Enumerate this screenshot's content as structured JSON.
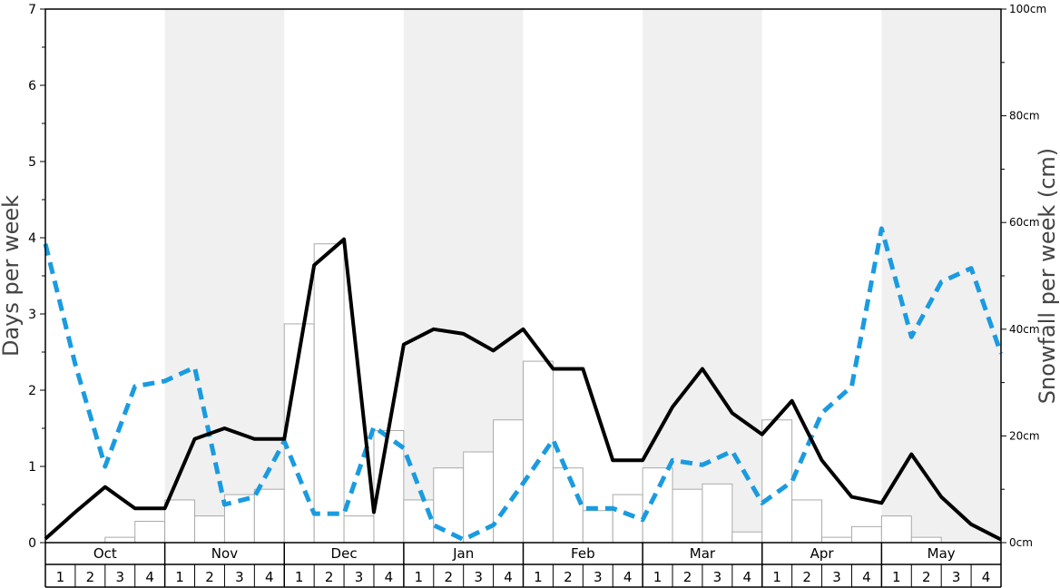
{
  "chart_data": {
    "type": "bar+line",
    "months": [
      "Oct",
      "Nov",
      "Dec",
      "Jan",
      "Feb",
      "Mar",
      "Apr",
      "May"
    ],
    "weeks_per_month": [
      "1",
      "2",
      "3",
      "4"
    ],
    "y_left": {
      "label": "Days per week",
      "range": [
        0,
        7
      ],
      "ticks": [
        "0",
        "1",
        "2",
        "3",
        "4",
        "5",
        "6",
        "7"
      ]
    },
    "y_right": {
      "label": "Snowfall per week (cm)",
      "range": [
        0,
        100
      ],
      "ticks": [
        "0cm",
        "20cm",
        "40cm",
        "60cm",
        "80cm",
        "100cm"
      ]
    },
    "snowfall_bars_cm": [
      0,
      0,
      1,
      4,
      8,
      5,
      9,
      10,
      41,
      56,
      5,
      21,
      8,
      14,
      17,
      23,
      34,
      14,
      6,
      9,
      14,
      10,
      11,
      2,
      23,
      8,
      1,
      3,
      5,
      1,
      0,
      0
    ],
    "solid_line_days": [
      0.05,
      0.4,
      0.73,
      0.45,
      0.45,
      1.36,
      1.5,
      1.36,
      1.36,
      3.64,
      3.98,
      0.4,
      2.6,
      2.8,
      2.74,
      2.52,
      2.8,
      2.28,
      2.28,
      1.08,
      1.08,
      1.78,
      2.28,
      1.7,
      1.42,
      1.86,
      1.08,
      0.6,
      0.52,
      1.16,
      0.6,
      0.24,
      0.04
    ],
    "dashed_line_days": [
      3.92,
      2.34,
      1.0,
      2.05,
      2.12,
      2.3,
      0.5,
      0.6,
      1.33,
      0.38,
      0.38,
      1.52,
      1.24,
      0.23,
      0.04,
      0.23,
      0.78,
      1.35,
      0.45,
      0.45,
      0.3,
      1.08,
      1.02,
      1.2,
      0.52,
      0.8,
      1.7,
      2.05,
      4.12,
      2.7,
      3.42,
      3.6,
      2.48
    ],
    "colors": {
      "solid_line": "#000000",
      "dashed_line": "#1a9be0",
      "bar_fill": "#ffffff",
      "bar_stroke": "#aaaaaa",
      "shade": "#f0f0f0"
    }
  }
}
